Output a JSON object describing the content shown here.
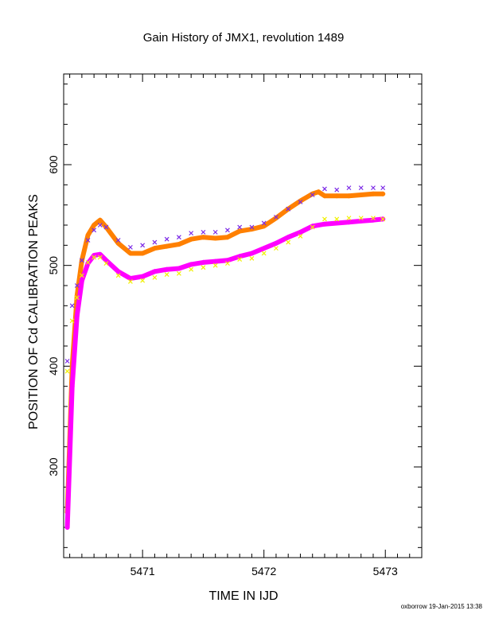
{
  "chart_data": {
    "type": "scatter",
    "title": "Gain History of JMX1, revolution 1489",
    "xlabel": "TIME IN IJD",
    "ylabel": "POSITION OF Cd CALIBRATION PEAKS",
    "xlim": [
      5470.35,
      5473.3
    ],
    "ylim": [
      210,
      690
    ],
    "x_ticks": [
      "5471",
      "5472",
      "5473"
    ],
    "y_ticks": [
      "300",
      "400",
      "500",
      "600"
    ],
    "grid": false,
    "legend": "none",
    "series": [
      {
        "color": "#ff8000",
        "marker": "plus-and-line",
        "x": [
          5470.38,
          5470.42,
          5470.46,
          5470.5,
          5470.55,
          5470.6,
          5470.65,
          5470.7,
          5470.8,
          5470.9,
          5471.0,
          5471.1,
          5471.2,
          5471.3,
          5471.4,
          5471.5,
          5471.6,
          5471.7,
          5471.8,
          5471.9,
          5472.0,
          5472.1,
          5472.2,
          5472.3,
          5472.4,
          5472.45,
          5472.5,
          5472.6,
          5472.7,
          5472.8,
          5472.9,
          5472.98
        ],
        "values": [
          255,
          400,
          470,
          505,
          530,
          540,
          545,
          538,
          522,
          512,
          512,
          517,
          519,
          521,
          526,
          528,
          527,
          528,
          534,
          536,
          539,
          547,
          556,
          564,
          571,
          573,
          569,
          569,
          569,
          570,
          571,
          571
        ]
      },
      {
        "color": "#ff00ff",
        "marker": "plus-and-line",
        "x": [
          5470.38,
          5470.42,
          5470.46,
          5470.5,
          5470.55,
          5470.6,
          5470.65,
          5470.7,
          5470.8,
          5470.9,
          5471.0,
          5471.1,
          5471.2,
          5471.3,
          5471.4,
          5471.5,
          5471.6,
          5471.7,
          5471.8,
          5471.9,
          5472.0,
          5472.1,
          5472.2,
          5472.3,
          5472.4,
          5472.5,
          5472.6,
          5472.7,
          5472.8,
          5472.9,
          5472.98
        ],
        "values": [
          240,
          380,
          450,
          485,
          502,
          510,
          511,
          505,
          494,
          487,
          489,
          494,
          496,
          497,
          501,
          503,
          504,
          505,
          509,
          512,
          517,
          522,
          528,
          533,
          539,
          541,
          542,
          543,
          544,
          545,
          546
        ]
      },
      {
        "color": "#7a28e6",
        "marker": "x",
        "x": [
          5470.38,
          5470.42,
          5470.46,
          5470.5,
          5470.55,
          5470.6,
          5470.65,
          5470.7,
          5470.8,
          5470.9,
          5471.0,
          5471.1,
          5471.2,
          5471.3,
          5471.4,
          5471.5,
          5471.6,
          5471.7,
          5471.8,
          5471.9,
          5472.0,
          5472.1,
          5472.2,
          5472.3,
          5472.4,
          5472.5,
          5472.6,
          5472.7,
          5472.8,
          5472.9,
          5472.98
        ],
        "values": [
          405,
          460,
          480,
          505,
          525,
          535,
          540,
          538,
          525,
          518,
          520,
          523,
          526,
          528,
          532,
          533,
          533,
          535,
          538,
          538,
          542,
          548,
          556,
          563,
          570,
          576,
          575,
          577,
          577,
          577,
          577
        ]
      },
      {
        "color": "#f0f000",
        "marker": "x",
        "x": [
          5470.38,
          5470.42,
          5470.46,
          5470.5,
          5470.55,
          5470.6,
          5470.65,
          5470.7,
          5470.8,
          5470.9,
          5471.0,
          5471.1,
          5471.2,
          5471.3,
          5471.4,
          5471.5,
          5471.6,
          5471.7,
          5471.8,
          5471.9,
          5472.0,
          5472.1,
          5472.2,
          5472.3,
          5472.4,
          5472.5,
          5472.6,
          5472.7,
          5472.8,
          5472.9,
          5472.98
        ],
        "values": [
          395,
          445,
          468,
          490,
          503,
          508,
          508,
          502,
          490,
          484,
          485,
          488,
          491,
          492,
          496,
          498,
          500,
          502,
          506,
          507,
          512,
          517,
          523,
          529,
          538,
          546,
          546,
          547,
          547,
          547,
          546
        ]
      }
    ]
  },
  "footer": "oxborrow 19-Jan-2015 13:38"
}
